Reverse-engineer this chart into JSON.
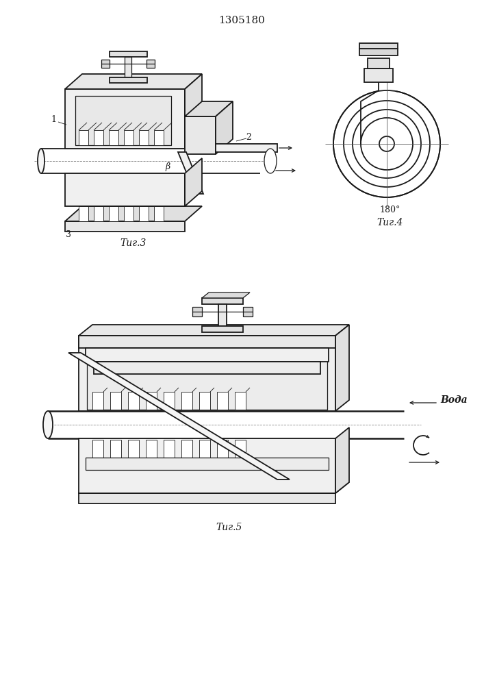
{
  "title": "1305180",
  "bg_color": "#ffffff",
  "line_color": "#1a1a1a",
  "fig3_caption": "Τиг.3",
  "fig4_caption": "Τиг.4",
  "fig5_caption": "Τиг.5",
  "label1": "1",
  "label2": "2",
  "label3": "3",
  "label_beta": "β",
  "label_180": "180°",
  "label_voda": "Вода",
  "caption_fontsize": 10,
  "title_fontsize": 11
}
